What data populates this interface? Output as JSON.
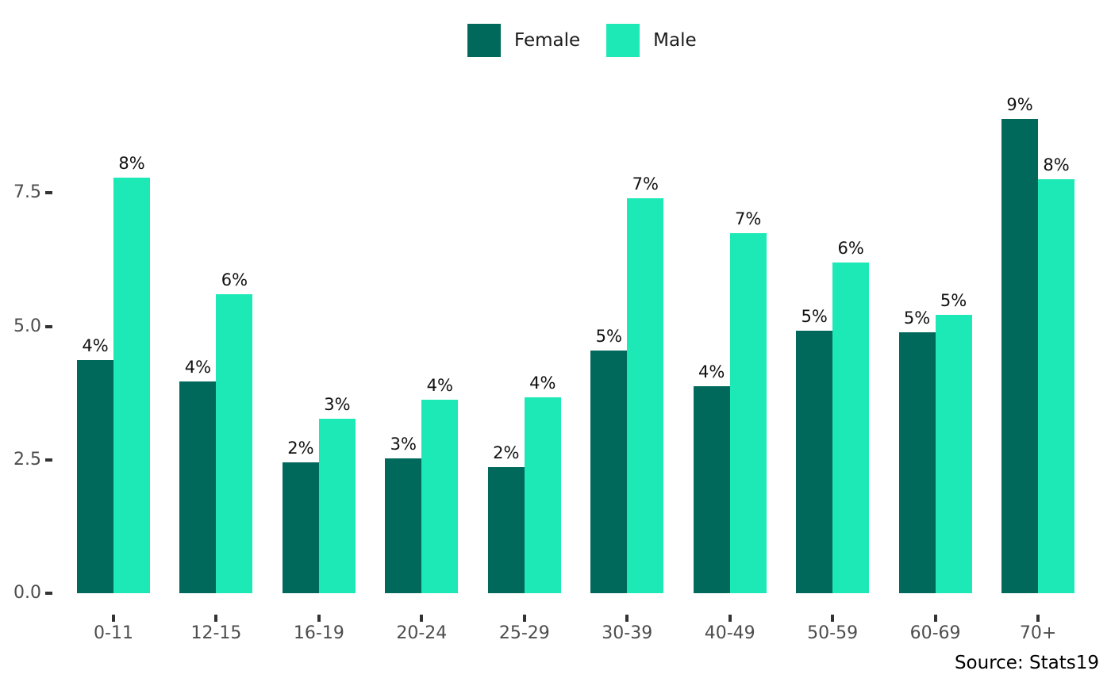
{
  "legend": {
    "items": [
      {
        "label": "Female",
        "color": "#00695C"
      },
      {
        "label": "Male",
        "color": "#1DE9B6"
      }
    ]
  },
  "source_caption": "Source: Stats19",
  "colors": {
    "female_bar": "#00695C",
    "male_bar": "#1DE9B6",
    "axis_text": "#4d4d4d",
    "tick_mark": "#333333",
    "value_label": "#111111",
    "background": "#ffffff"
  },
  "chart_data": {
    "type": "bar",
    "title": "",
    "xlabel": "",
    "ylabel": "",
    "grid": false,
    "legend_position": "top-center",
    "categories": [
      "0-11",
      "12-15",
      "16-19",
      "20-24",
      "25-29",
      "30-39",
      "40-49",
      "50-59",
      "60-69",
      "70+"
    ],
    "series": [
      {
        "name": "Female",
        "color": "#00695C",
        "values": [
          4.37,
          3.97,
          2.45,
          2.52,
          2.36,
          4.54,
          3.88,
          4.92,
          4.89,
          8.89
        ],
        "labels": [
          "4%",
          "4%",
          "2%",
          "3%",
          "2%",
          "5%",
          "4%",
          "5%",
          "5%",
          "9%"
        ]
      },
      {
        "name": "Male",
        "color": "#1DE9B6",
        "values": [
          7.78,
          5.6,
          3.27,
          3.63,
          3.67,
          7.4,
          6.74,
          6.2,
          5.22,
          7.75
        ],
        "labels": [
          "8%",
          "6%",
          "3%",
          "4%",
          "4%",
          "7%",
          "7%",
          "6%",
          "5%",
          "8%"
        ]
      }
    ],
    "yticks": [
      0.0,
      2.5,
      5.0,
      7.5
    ],
    "ytick_labels": [
      "0.0",
      "2.5",
      "5.0",
      "7.5"
    ],
    "ylim": [
      0,
      9.7
    ],
    "value_label_format": "rounded percent above each bar"
  }
}
